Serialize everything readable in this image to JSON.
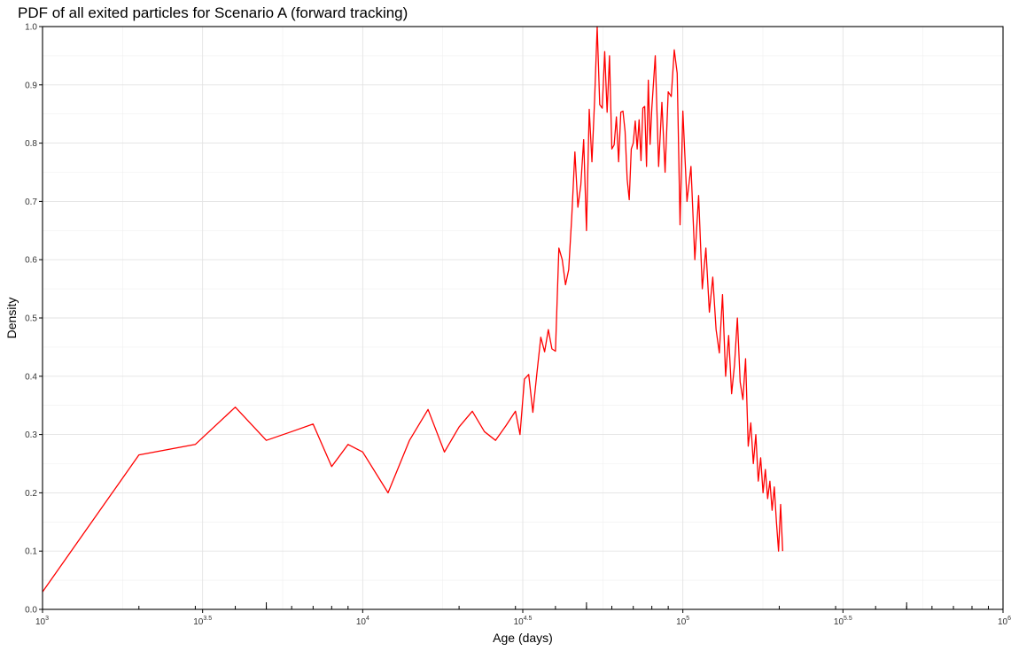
{
  "chart_data": {
    "type": "line",
    "title": "PDF of all exited particles for Scenario A (forward tracking)",
    "xlabel": "Age (days)",
    "ylabel": "Density",
    "x_scale": "log10",
    "xlim": [
      1000,
      1000000
    ],
    "ylim": [
      0,
      1.0
    ],
    "grid": true,
    "legend": "none",
    "x_ticks": [
      {
        "value": 1000,
        "base": "10",
        "exp": "3"
      },
      {
        "value": 3162.28,
        "base": "10",
        "exp": "3.5"
      },
      {
        "value": 10000,
        "base": "10",
        "exp": "4"
      },
      {
        "value": 31622.8,
        "base": "10",
        "exp": "4.5"
      },
      {
        "value": 100000,
        "base": "10",
        "exp": "5"
      },
      {
        "value": 316228,
        "base": "10",
        "exp": "5.5"
      },
      {
        "value": 1000000,
        "base": "10",
        "exp": "6"
      }
    ],
    "y_ticks": [
      {
        "value": 0.0,
        "label": "0.0"
      },
      {
        "value": 0.1,
        "label": "0.1"
      },
      {
        "value": 0.2,
        "label": "0.2"
      },
      {
        "value": 0.3,
        "label": "0.3"
      },
      {
        "value": 0.4,
        "label": "0.4"
      },
      {
        "value": 0.5,
        "label": "0.5"
      },
      {
        "value": 0.6,
        "label": "0.6"
      },
      {
        "value": 0.7,
        "label": "0.7"
      },
      {
        "value": 0.8,
        "label": "0.8"
      },
      {
        "value": 0.9,
        "label": "0.9"
      },
      {
        "value": 1.0,
        "label": "1.0"
      }
    ],
    "rug_x": [
      2000,
      3000,
      4000,
      5000,
      6000,
      7000,
      8000,
      9000,
      20000,
      30000,
      40000,
      50000,
      60000,
      70000,
      80000,
      90000,
      200000,
      300000,
      400000,
      500000,
      600000,
      700000,
      800000,
      900000
    ],
    "rug_x_long": [
      5000,
      50000,
      500000
    ],
    "series": [
      {
        "color": "#ff0000",
        "x": [
          1000,
          2000,
          3000,
          4000,
          5000,
          6000,
          7000,
          8000,
          9000,
          10000,
          12000,
          14000,
          16000,
          18000,
          20000,
          22000,
          24000,
          26000,
          28000,
          30000,
          31000,
          32000,
          33000,
          34000,
          35000,
          36000,
          37000,
          38000,
          39000,
          40000,
          41000,
          42000,
          43000,
          44000,
          45000,
          46000,
          47000,
          48000,
          49000,
          50000,
          51000,
          52000,
          53000,
          54000,
          55000,
          56000,
          57000,
          58000,
          59000,
          60000,
          61000,
          62000,
          63000,
          64000,
          65000,
          66000,
          67000,
          68000,
          69000,
          70000,
          71000,
          72000,
          73000,
          74000,
          75000,
          76000,
          77000,
          78000,
          79000,
          80000,
          82000,
          84000,
          86000,
          88000,
          90000,
          92000,
          94000,
          96000,
          98000,
          100000,
          103000,
          106000,
          109000,
          112000,
          115000,
          118000,
          121000,
          124000,
          127000,
          130000,
          133000,
          136000,
          139000,
          142000,
          145000,
          148000,
          151000,
          154000,
          157000,
          160000,
          163000,
          166000,
          169000,
          172000,
          175000,
          178000,
          181000,
          184000,
          187000,
          190000,
          193000,
          196000,
          199000,
          202000,
          205000
        ],
        "y": [
          0.03,
          0.265,
          0.283,
          0.347,
          0.29,
          0.305,
          0.318,
          0.245,
          0.283,
          0.27,
          0.2,
          0.29,
          0.343,
          0.27,
          0.313,
          0.34,
          0.305,
          0.29,
          0.315,
          0.34,
          0.3,
          0.395,
          0.403,
          0.338,
          0.405,
          0.467,
          0.442,
          0.48,
          0.447,
          0.443,
          0.62,
          0.6,
          0.557,
          0.583,
          0.676,
          0.785,
          0.69,
          0.728,
          0.806,
          0.65,
          0.858,
          0.768,
          0.873,
          1.0,
          0.866,
          0.86,
          0.957,
          0.853,
          0.95,
          0.79,
          0.797,
          0.845,
          0.768,
          0.853,
          0.855,
          0.82,
          0.738,
          0.703,
          0.79,
          0.8,
          0.838,
          0.79,
          0.84,
          0.77,
          0.86,
          0.863,
          0.76,
          0.908,
          0.798,
          0.86,
          0.95,
          0.76,
          0.87,
          0.75,
          0.888,
          0.88,
          0.96,
          0.92,
          0.66,
          0.855,
          0.7,
          0.76,
          0.6,
          0.71,
          0.55,
          0.62,
          0.51,
          0.57,
          0.48,
          0.44,
          0.54,
          0.4,
          0.47,
          0.37,
          0.42,
          0.5,
          0.39,
          0.36,
          0.43,
          0.28,
          0.32,
          0.25,
          0.3,
          0.22,
          0.26,
          0.2,
          0.24,
          0.19,
          0.22,
          0.17,
          0.21,
          0.15,
          0.1,
          0.18,
          0.1
        ]
      }
    ]
  }
}
